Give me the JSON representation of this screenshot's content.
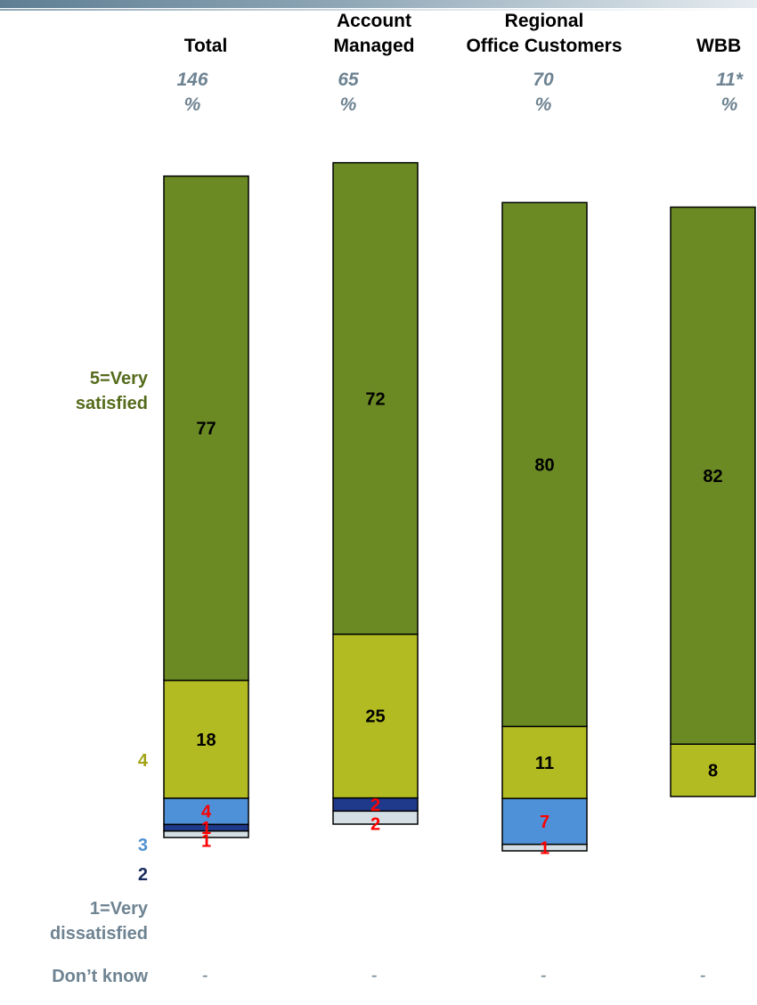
{
  "columns": [
    {
      "header_line1": "",
      "header_line2": "Total",
      "base": "146",
      "unit": "%",
      "dont_know": "-"
    },
    {
      "header_line1": "Account",
      "header_line2": "Managed",
      "base": "65",
      "unit": "%",
      "dont_know": "-"
    },
    {
      "header_line1": "Regional",
      "header_line2": "Office Customers",
      "base": "70",
      "unit": "%",
      "dont_know": "-"
    },
    {
      "header_line1": "",
      "header_line2": "WBB",
      "base": "11*",
      "unit": "%",
      "dont_know": "-"
    }
  ],
  "categories": [
    {
      "line1": "5=Very",
      "line2": "satisfied",
      "color": "#556b1b"
    },
    {
      "line1": "4",
      "line2": "",
      "color": "#a3a318"
    },
    {
      "line1": "3",
      "line2": "",
      "color": "#4f91d0"
    },
    {
      "line1": "2",
      "line2": "",
      "color": "#1a2d5c"
    },
    {
      "line1": "1=Very",
      "line2": "dissatisfied",
      "color": "#6e8392"
    },
    {
      "line1": "Don’t know",
      "line2": "",
      "color": "#6e8392"
    }
  ],
  "chart_data": {
    "type": "bar",
    "stacked": true,
    "orientation": "vertical",
    "categories": [
      "Total",
      "Account Managed",
      "Regional Office Customers",
      "WBB"
    ],
    "series": [
      {
        "name": "5=Very satisfied",
        "values": [
          77,
          72,
          80,
          82
        ],
        "labels": [
          "77",
          "72",
          "80",
          "82"
        ],
        "color": "#6b8a24",
        "label_color": "#000000"
      },
      {
        "name": "4",
        "values": [
          18,
          25,
          11,
          8
        ],
        "labels": [
          "18",
          "25",
          "11",
          "8"
        ],
        "color": "#b3bb22",
        "label_color": "#000000"
      },
      {
        "name": "3",
        "values": [
          4,
          0,
          7,
          0
        ],
        "labels": [
          "4",
          "",
          "7",
          ""
        ],
        "color": "#4f91d8",
        "label_color": "#ff0000"
      },
      {
        "name": "2",
        "values": [
          1,
          2,
          0,
          0
        ],
        "labels": [
          "1",
          "2",
          "",
          ""
        ],
        "color": "#1f3a8a",
        "label_color": "#ff0000"
      },
      {
        "name": "1=Very dissatisfied",
        "values": [
          1,
          2,
          1,
          0
        ],
        "labels": [
          "1",
          "2",
          "1",
          ""
        ],
        "color": "#d3dfe4",
        "label_color": "#ff0000"
      }
    ],
    "dont_know": [
      "-",
      "-",
      "-",
      "-"
    ],
    "unit": "%"
  }
}
